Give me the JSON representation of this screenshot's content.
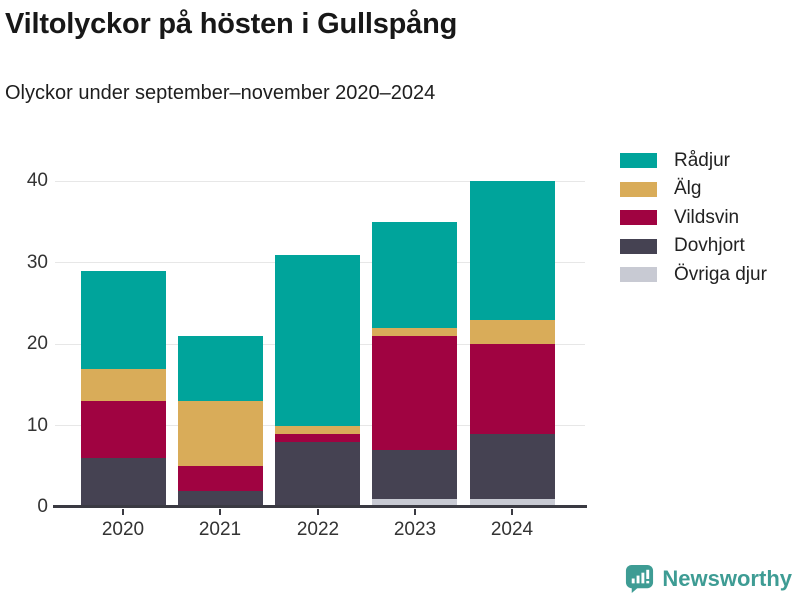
{
  "header": {
    "title": "Viltolyckor på hösten i Gullspång",
    "subtitle": "Olyckor under september–november 2020–2024"
  },
  "chart_data": {
    "type": "bar",
    "stacked": true,
    "title": "Viltolyckor på hösten i Gullspång",
    "subtitle": "Olyckor under september–november 2020–2024",
    "categories": [
      "2020",
      "2021",
      "2022",
      "2023",
      "2024"
    ],
    "series": [
      {
        "name": "Rådjur",
        "color": "#00A49B",
        "values": [
          12,
          8,
          21,
          13,
          17
        ]
      },
      {
        "name": "Älg",
        "color": "#D9AC59",
        "values": [
          4,
          8,
          1,
          1,
          3
        ]
      },
      {
        "name": "Vildsvin",
        "color": "#A00341",
        "values": [
          7,
          3,
          1,
          14,
          11
        ]
      },
      {
        "name": "Dovhjort",
        "color": "#454252",
        "values": [
          6,
          2,
          8,
          6,
          8
        ]
      },
      {
        "name": "Övriga djur",
        "color": "#C8CAD3",
        "values": [
          0,
          0,
          0,
          1,
          1
        ]
      }
    ],
    "stack_order_bottom_to_top": [
      "Övriga djur",
      "Dovhjort",
      "Vildsvin",
      "Älg",
      "Rådjur"
    ],
    "totals": [
      29,
      21,
      31,
      35,
      40
    ],
    "yticks": [
      0,
      10,
      20,
      30,
      40
    ],
    "ylim": [
      0,
      41.4
    ],
    "xlabel": "",
    "ylabel": "",
    "grid": true,
    "legend_position": "right"
  },
  "colors": {
    "grid": "#e7e7e7",
    "axis": "#3a3a42",
    "text": "#333333",
    "title": "#181818"
  },
  "footer": {
    "brand": "Newsworthy",
    "brand_color": "#3E9C94",
    "icon": "newsworthy-speech-bubble-bar-chart-icon"
  }
}
